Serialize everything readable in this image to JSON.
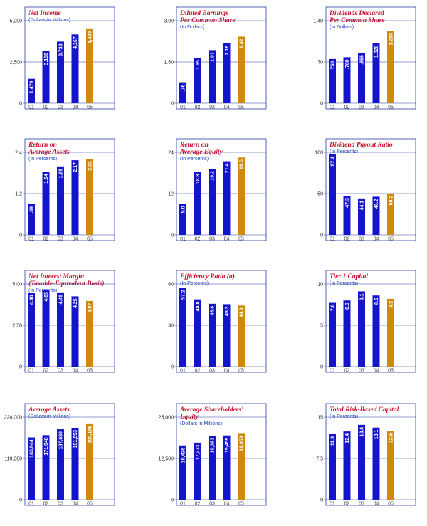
{
  "colors": {
    "bar": "#1414cc",
    "highlight": "#cf8a0c",
    "frame": "#2a3fa6",
    "title": "#c8102e",
    "subtitle": "#1f3fbf"
  },
  "chart_data": [
    {
      "type": "bar",
      "title": [
        "Net Income"
      ],
      "subtitle": "(Dollars in Millions)",
      "categories": [
        "01",
        "02",
        "03",
        "04",
        "05"
      ],
      "values": [
        1479,
        3188,
        3733,
        4167,
        4489
      ],
      "value_labels": [
        "1,479",
        "3,188",
        "3,733",
        "4,167",
        "4,489"
      ],
      "yticks": [
        "0",
        "2,500",
        "5,000"
      ],
      "ylim": [
        0,
        5000
      ],
      "highlight_index": 4
    },
    {
      "type": "bar",
      "title": [
        "Diluted Earnings",
        "Per Common Share"
      ],
      "subtitle": "(In Dollars)",
      "categories": [
        "01",
        "02",
        "03",
        "04",
        "05"
      ],
      "values": [
        0.76,
        1.65,
        1.93,
        2.18,
        2.42
      ],
      "value_labels": [
        ".76",
        "1.65",
        "1.93",
        "2.18",
        "2.42"
      ],
      "yticks": [
        "0",
        "1.50",
        "3.00"
      ],
      "ylim": [
        0,
        3
      ],
      "highlight_index": 4
    },
    {
      "type": "bar",
      "title": [
        "Dividends Declared",
        "Per Common Share"
      ],
      "subtitle": "(In Dollars)",
      "categories": [
        "01",
        "02",
        "03",
        "04",
        "05"
      ],
      "values": [
        0.75,
        0.78,
        0.855,
        1.02,
        1.23
      ],
      "value_labels": [
        ".750",
        ".780",
        ".855",
        "1.020",
        "1.230"
      ],
      "yticks": [
        "0",
        ".70",
        "1.40"
      ],
      "ylim": [
        0,
        1.4
      ],
      "highlight_index": 4
    },
    {
      "type": "bar",
      "title": [
        "Return on",
        "Average Assets"
      ],
      "subtitle": "(In Percents)",
      "categories": [
        "01",
        "02",
        "03",
        "04",
        "05"
      ],
      "values": [
        0.89,
        1.84,
        1.99,
        2.17,
        2.21
      ],
      "value_labels": [
        ".89",
        "1.84",
        "1.99",
        "2.17",
        "2.21"
      ],
      "yticks": [
        "0",
        "1.2",
        "2.4"
      ],
      "ylim": [
        0,
        2.4
      ],
      "highlight_index": 4
    },
    {
      "type": "bar",
      "title": [
        "Return on",
        "Average Equity"
      ],
      "subtitle": "(In Percents)",
      "categories": [
        "01",
        "02",
        "03",
        "04",
        "05"
      ],
      "values": [
        9.0,
        18.3,
        19.2,
        21.4,
        22.5
      ],
      "value_labels": [
        "9.0",
        "18.3",
        "19.2",
        "21.4",
        "22.5"
      ],
      "yticks": [
        "0",
        "12",
        "24"
      ],
      "ylim": [
        0,
        24
      ],
      "highlight_index": 4
    },
    {
      "type": "bar",
      "title": [
        "Dividend Payout Ratio"
      ],
      "subtitle": "(In Percents)",
      "categories": [
        "01",
        "02",
        "03",
        "04",
        "05"
      ],
      "values": [
        97.4,
        47.3,
        44.1,
        46.2,
        50.2
      ],
      "value_labels": [
        "97.4",
        "47.3",
        "44.1",
        "46.2",
        "50.2"
      ],
      "yticks": [
        "0",
        "50",
        "100"
      ],
      "ylim": [
        0,
        100
      ],
      "highlight_index": 4
    },
    {
      "type": "bar",
      "title": [
        "Net Interest Margin",
        "(Taxable-Equivalent Basis)"
      ],
      "subtitle": "(In Percents)",
      "categories": [
        "01",
        "02",
        "03",
        "04",
        "05"
      ],
      "values": [
        4.46,
        4.65,
        4.49,
        4.25,
        3.97
      ],
      "value_labels": [
        "4.46",
        "4.65",
        "4.49",
        "4.25",
        "3.97"
      ],
      "yticks": [
        "0",
        "2.50",
        "5.00"
      ],
      "ylim": [
        0,
        5
      ],
      "highlight_index": 4
    },
    {
      "type": "bar",
      "title": [
        "Efficiency Ratio (a)"
      ],
      "subtitle": "(In Percents)",
      "categories": [
        "01",
        "02",
        "03",
        "04",
        "05"
      ],
      "values": [
        57.2,
        48.8,
        45.6,
        45.3,
        44.3
      ],
      "value_labels": [
        "57.2",
        "48.8",
        "45.6",
        "45.3",
        "44.3"
      ],
      "yticks": [
        "0",
        "30",
        "60"
      ],
      "ylim": [
        0,
        60
      ],
      "highlight_index": 4
    },
    {
      "type": "bar",
      "title": [
        "Tier 1 Capital"
      ],
      "subtitle": "(In Percents)",
      "categories": [
        "01",
        "02",
        "03",
        "04",
        "05"
      ],
      "values": [
        7.8,
        8.0,
        9.1,
        8.6,
        8.2
      ],
      "value_labels": [
        "7.8",
        "8.0",
        "9.1",
        "8.6",
        "8.2"
      ],
      "yticks": [
        "0",
        "5",
        "10"
      ],
      "ylim": [
        0,
        10
      ],
      "highlight_index": 4
    },
    {
      "type": "bar",
      "title": [
        "Average Assets"
      ],
      "subtitle": "(Dollars in Millions)",
      "categories": [
        "01",
        "02",
        "03",
        "04",
        "05"
      ],
      "values": [
        165944,
        171948,
        187630,
        191593,
        203198
      ],
      "value_labels": [
        "165,944",
        "171,948",
        "187,630",
        "191,593",
        "203,198"
      ],
      "yticks": [
        "0",
        "110,000",
        "220,000"
      ],
      "ylim": [
        0,
        220000
      ],
      "highlight_index": 4
    },
    {
      "type": "bar",
      "title": [
        "Average Shareholders'",
        "Equity"
      ],
      "subtitle": "(Dollars in Millions)",
      "categories": [
        "01",
        "02",
        "03",
        "04",
        "05"
      ],
      "values": [
        16426,
        17273,
        19393,
        19459,
        19953
      ],
      "value_labels": [
        "16,426",
        "17,273",
        "19,393",
        "19,459",
        "19,953"
      ],
      "yticks": [
        "0",
        "12,500",
        "25,000"
      ],
      "ylim": [
        0,
        25000
      ],
      "highlight_index": 4
    },
    {
      "type": "bar",
      "title": [
        "Total Risk-Based Capital"
      ],
      "subtitle": "(In Percents)",
      "categories": [
        "01",
        "02",
        "03",
        "04",
        "05"
      ],
      "values": [
        11.9,
        12.4,
        13.6,
        13.1,
        12.5
      ],
      "value_labels": [
        "11.9",
        "12.4",
        "13.6",
        "13.1",
        "12.5"
      ],
      "yticks": [
        "0",
        "7.5",
        "15"
      ],
      "ylim": [
        0,
        15
      ],
      "highlight_index": 4
    }
  ]
}
